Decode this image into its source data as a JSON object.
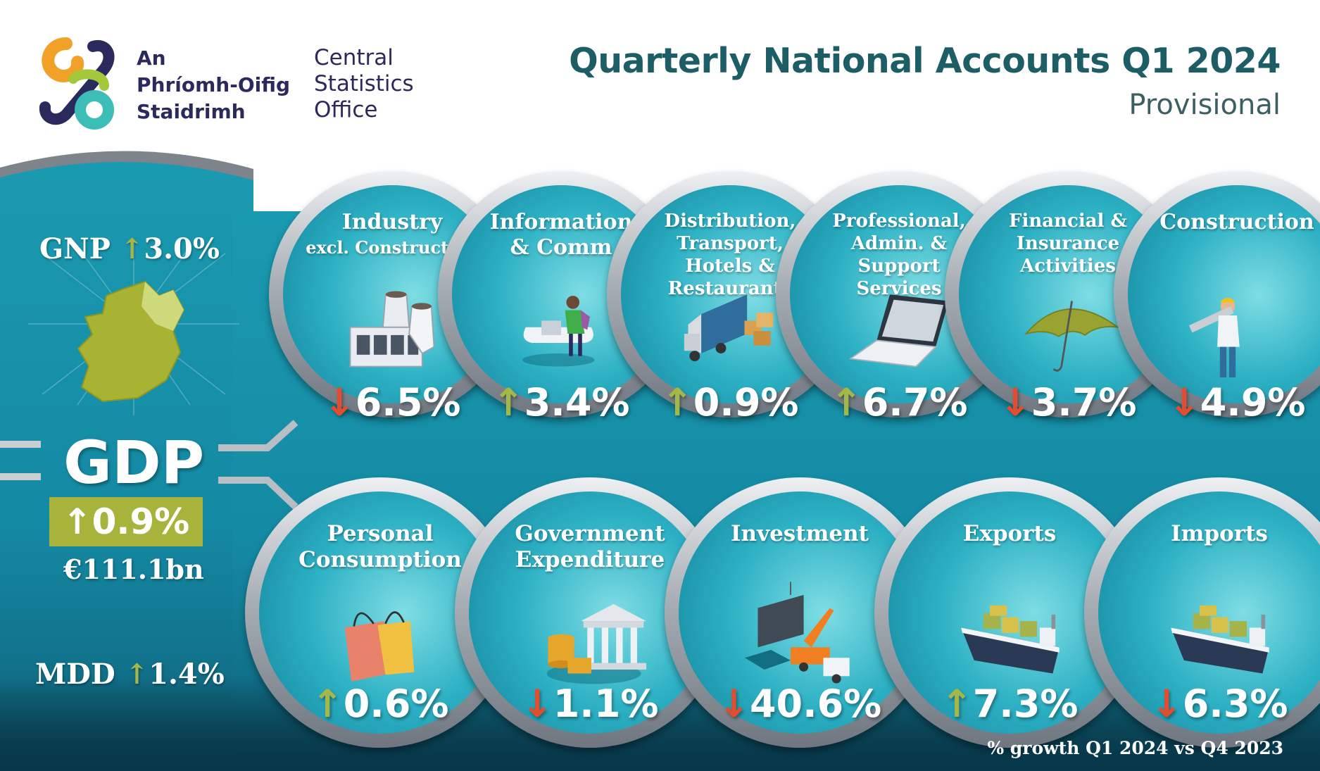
{
  "header": {
    "logo_irish": [
      "An",
      "Phríomh-Oifig",
      "Staidrimh"
    ],
    "logo_english": [
      "Central",
      "Statistics",
      "Office"
    ],
    "title": "Quarterly National Accounts Q1 2024",
    "subtitle": "Provisional"
  },
  "colors": {
    "teal_dark": "#0f6f86",
    "teal_light": "#2fb6c6",
    "up_arrow": "#a3b74a",
    "down_arrow": "#e04e2f",
    "title": "#1d5e66",
    "gdp_box": "#a7b33a"
  },
  "summary": {
    "gnp_label": "GNP",
    "gnp_direction": "up",
    "gnp_value": "3.0%",
    "gdp_label": "GDP",
    "gdp_direction": "up",
    "gdp_value": "0.9%",
    "gdp_amount": "€111.1bn",
    "mdd_label": "MDD",
    "mdd_direction": "up",
    "mdd_value": "1.4%",
    "map_icon": "ireland-map-icon"
  },
  "sectors": [
    {
      "lines": [
        "Industry",
        "excl. Construction"
      ],
      "direction": "down",
      "value": "6.5%",
      "icon": "factory-icon"
    },
    {
      "lines": [
        "Information",
        "& Comm"
      ],
      "direction": "up",
      "value": "3.4%",
      "icon": "computer-user-icon"
    },
    {
      "lines": [
        "Distribution,",
        "Transport,",
        "Hotels &",
        "Restaurants"
      ],
      "direction": "up",
      "value": "0.9%",
      "icon": "delivery-truck-icon"
    },
    {
      "lines": [
        "Professional,",
        "Admin. &",
        "Support",
        "Services"
      ],
      "direction": "up",
      "value": "6.7%",
      "icon": "laptop-icon"
    },
    {
      "lines": [
        "Financial &",
        "Insurance",
        "Activities"
      ],
      "direction": "down",
      "value": "3.7%",
      "icon": "umbrella-icon"
    },
    {
      "lines": [
        "Construction"
      ],
      "direction": "down",
      "value": "4.9%",
      "icon": "construction-worker-icon"
    }
  ],
  "expenditure": [
    {
      "lines": [
        "Personal",
        "Consumption"
      ],
      "direction": "up",
      "value": "0.6%",
      "icon": "shopping-bags-icon"
    },
    {
      "lines": [
        "Government",
        "Expenditure"
      ],
      "direction": "down",
      "value": "1.1%",
      "icon": "government-building-icon"
    },
    {
      "lines": [
        "Investment"
      ],
      "direction": "down",
      "value": "40.6%",
      "icon": "crane-icon"
    },
    {
      "lines": [
        "Exports"
      ],
      "direction": "up",
      "value": "7.3%",
      "icon": "cargo-ship-icon"
    },
    {
      "lines": [
        "Imports"
      ],
      "direction": "down",
      "value": "6.3%",
      "icon": "cargo-ship-icon"
    }
  ],
  "footnote": "% growth Q1 2024 vs Q4 2023"
}
